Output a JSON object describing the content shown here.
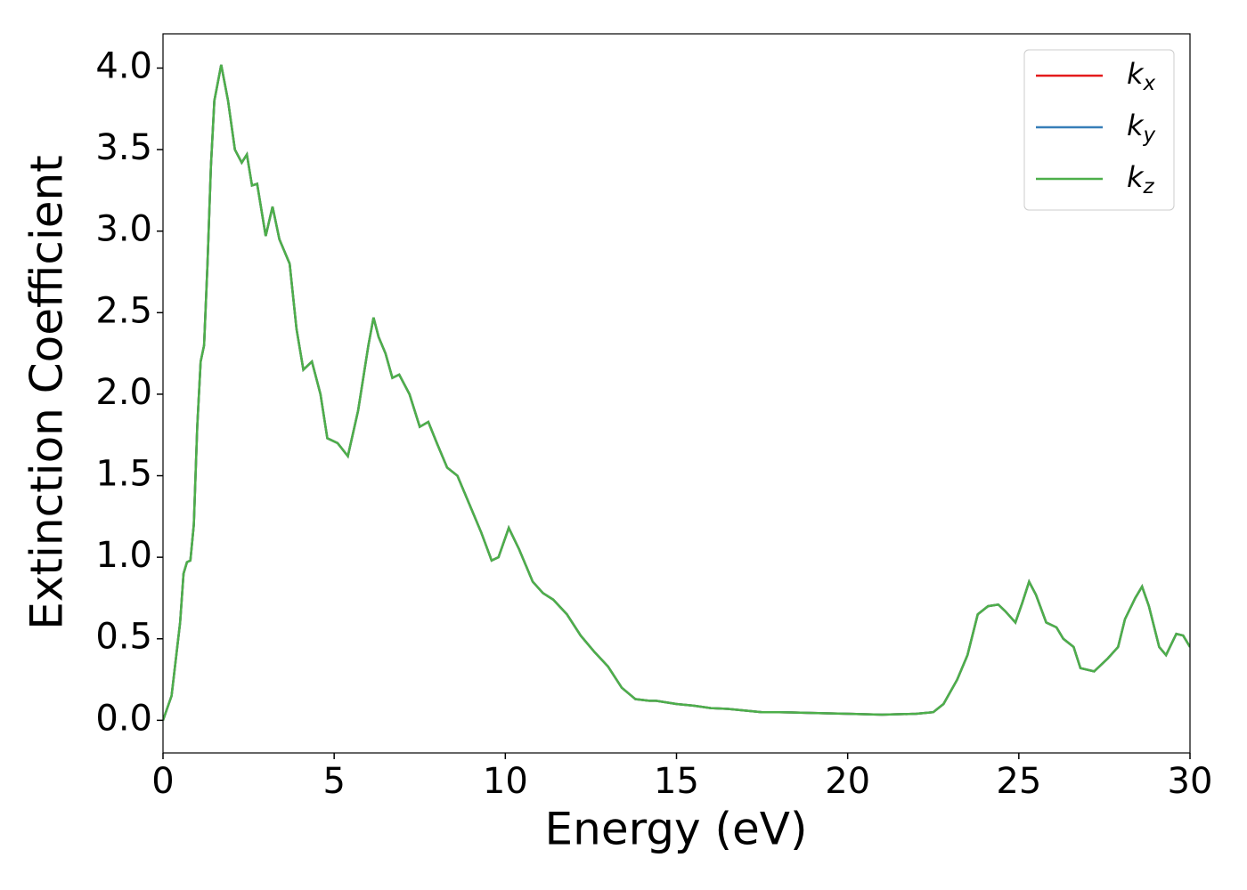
{
  "chart_data": {
    "type": "line",
    "xlabel": "Energy (eV)",
    "ylabel": "Extinction Coefficient",
    "x": [
      0,
      0.25,
      0.5,
      0.6,
      0.7,
      0.8,
      0.9,
      1.0,
      1.1,
      1.2,
      1.3,
      1.4,
      1.5,
      1.7,
      1.9,
      2.1,
      2.3,
      2.45,
      2.6,
      2.75,
      3.0,
      3.2,
      3.4,
      3.7,
      3.9,
      4.1,
      4.35,
      4.6,
      4.8,
      5.1,
      5.4,
      5.7,
      6.0,
      6.15,
      6.3,
      6.5,
      6.7,
      6.9,
      7.2,
      7.5,
      7.75,
      8.0,
      8.3,
      8.6,
      9.0,
      9.3,
      9.6,
      9.8,
      10.1,
      10.4,
      10.8,
      11.1,
      11.4,
      11.8,
      12.2,
      12.6,
      13.0,
      13.4,
      13.8,
      14.2,
      14.4,
      15,
      15.5,
      16,
      16.5,
      17,
      17.5,
      18,
      19,
      20,
      21,
      22,
      22.5,
      22.8,
      23.2,
      23.5,
      23.8,
      24.1,
      24.4,
      24.6,
      24.9,
      25.1,
      25.3,
      25.5,
      25.8,
      26.1,
      26.3,
      26.6,
      26.8,
      27.2,
      27.6,
      27.9,
      28.1,
      28.4,
      28.6,
      28.8,
      29.1,
      29.3,
      29.6,
      29.8,
      30
    ],
    "series": [
      {
        "name": "kx",
        "color": "#e41a1c",
        "values": [
          0.0,
          0.15,
          0.6,
          0.9,
          0.97,
          0.98,
          1.2,
          1.8,
          2.2,
          2.3,
          2.8,
          3.4,
          3.8,
          4.02,
          3.8,
          3.5,
          3.42,
          3.47,
          3.28,
          3.29,
          2.97,
          3.15,
          2.95,
          2.8,
          2.4,
          2.15,
          2.2,
          2.0,
          1.73,
          1.7,
          1.62,
          1.9,
          2.3,
          2.47,
          2.35,
          2.25,
          2.1,
          2.12,
          2.0,
          1.8,
          1.83,
          1.7,
          1.55,
          1.5,
          1.3,
          1.15,
          0.98,
          1.0,
          1.18,
          1.05,
          0.85,
          0.78,
          0.74,
          0.65,
          0.52,
          0.42,
          0.33,
          0.2,
          0.13,
          0.12,
          0.12,
          0.1,
          0.09,
          0.075,
          0.07,
          0.06,
          0.05,
          0.05,
          0.045,
          0.04,
          0.035,
          0.04,
          0.05,
          0.1,
          0.25,
          0.4,
          0.65,
          0.7,
          0.71,
          0.67,
          0.6,
          0.72,
          0.85,
          0.77,
          0.6,
          0.57,
          0.5,
          0.45,
          0.32,
          0.3,
          0.38,
          0.45,
          0.62,
          0.75,
          0.82,
          0.7,
          0.45,
          0.4,
          0.53,
          0.52,
          0.45
        ]
      },
      {
        "name": "ky",
        "color": "#377eb8",
        "values": [
          0.0,
          0.15,
          0.6,
          0.9,
          0.97,
          0.98,
          1.2,
          1.8,
          2.2,
          2.3,
          2.8,
          3.4,
          3.8,
          4.02,
          3.8,
          3.5,
          3.42,
          3.47,
          3.28,
          3.29,
          2.97,
          3.15,
          2.95,
          2.8,
          2.4,
          2.15,
          2.2,
          2.0,
          1.73,
          1.7,
          1.62,
          1.9,
          2.3,
          2.47,
          2.35,
          2.25,
          2.1,
          2.12,
          2.0,
          1.8,
          1.83,
          1.7,
          1.55,
          1.5,
          1.3,
          1.15,
          0.98,
          1.0,
          1.18,
          1.05,
          0.85,
          0.78,
          0.74,
          0.65,
          0.52,
          0.42,
          0.33,
          0.2,
          0.13,
          0.12,
          0.12,
          0.1,
          0.09,
          0.075,
          0.07,
          0.06,
          0.05,
          0.05,
          0.045,
          0.04,
          0.035,
          0.04,
          0.05,
          0.1,
          0.25,
          0.4,
          0.65,
          0.7,
          0.71,
          0.67,
          0.6,
          0.72,
          0.85,
          0.77,
          0.6,
          0.57,
          0.5,
          0.45,
          0.32,
          0.3,
          0.38,
          0.45,
          0.62,
          0.75,
          0.82,
          0.7,
          0.45,
          0.4,
          0.53,
          0.52,
          0.45
        ]
      },
      {
        "name": "kz",
        "color": "#4daf4a",
        "values": [
          0.0,
          0.15,
          0.6,
          0.9,
          0.97,
          0.98,
          1.2,
          1.8,
          2.2,
          2.3,
          2.8,
          3.4,
          3.8,
          4.02,
          3.8,
          3.5,
          3.42,
          3.47,
          3.28,
          3.29,
          2.97,
          3.15,
          2.95,
          2.8,
          2.4,
          2.15,
          2.2,
          2.0,
          1.73,
          1.7,
          1.62,
          1.9,
          2.3,
          2.47,
          2.35,
          2.25,
          2.1,
          2.12,
          2.0,
          1.8,
          1.83,
          1.7,
          1.55,
          1.5,
          1.3,
          1.15,
          0.98,
          1.0,
          1.18,
          1.05,
          0.85,
          0.78,
          0.74,
          0.65,
          0.52,
          0.42,
          0.33,
          0.2,
          0.13,
          0.12,
          0.12,
          0.1,
          0.09,
          0.075,
          0.07,
          0.06,
          0.05,
          0.05,
          0.045,
          0.04,
          0.035,
          0.04,
          0.05,
          0.1,
          0.25,
          0.4,
          0.65,
          0.7,
          0.71,
          0.67,
          0.6,
          0.72,
          0.85,
          0.77,
          0.6,
          0.57,
          0.5,
          0.45,
          0.32,
          0.3,
          0.38,
          0.45,
          0.62,
          0.75,
          0.82,
          0.7,
          0.45,
          0.4,
          0.53,
          0.52,
          0.45
        ]
      }
    ],
    "xlim": [
      0,
      30
    ],
    "xticks": [
      0,
      5,
      10,
      15,
      20,
      25,
      30
    ],
    "ylim": [
      -0.2,
      4.21
    ],
    "yticks": [
      {
        "value": 0,
        "label": "0.0"
      },
      0.5,
      {
        "value": 1,
        "label": "1.0"
      },
      1.5,
      {
        "value": 2,
        "label": "2.0"
      },
      2.5,
      {
        "value": 3,
        "label": "3.0"
      },
      3.5,
      {
        "value": 4,
        "label": "4.0"
      }
    ],
    "legend": "upper right",
    "grid": false
  }
}
